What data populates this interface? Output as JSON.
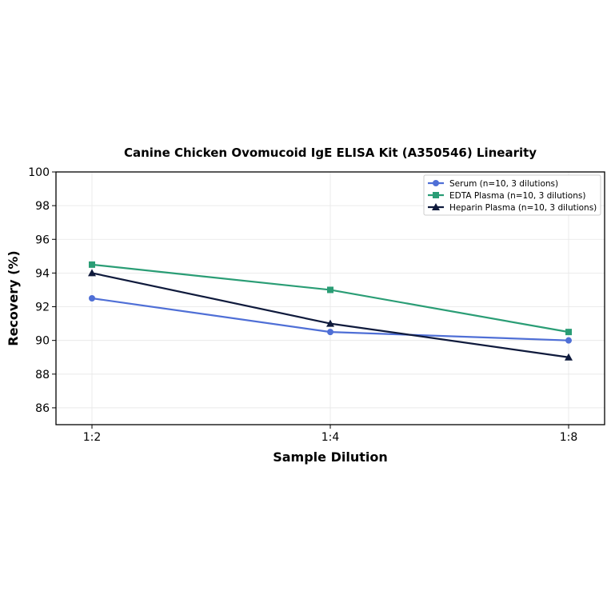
{
  "chart_data": {
    "type": "line",
    "title": "Canine Chicken Ovomucoid IgE ELISA Kit (A350546) Linearity",
    "xlabel": "Sample Dilution",
    "ylabel": "Recovery (%)",
    "categories": [
      "1:2",
      "1:4",
      "1:8"
    ],
    "ylim": [
      85,
      100
    ],
    "yticks": [
      86,
      88,
      90,
      92,
      94,
      96,
      98,
      100
    ],
    "grid": true,
    "legend_position": "top-right",
    "series": [
      {
        "name": "Serum (n=10, 3 dilutions)",
        "values": [
          92.5,
          90.5,
          90.0
        ],
        "color": "#4f6fd6",
        "marker": "circle"
      },
      {
        "name": "EDTA Plasma (n=10, 3 dilutions)",
        "values": [
          94.5,
          93.0,
          90.5
        ],
        "color": "#2a9d75",
        "marker": "square"
      },
      {
        "name": "Heparin Plasma (n=10, 3 dilutions)",
        "values": [
          94.0,
          91.0,
          89.0
        ],
        "color": "#0f1a3c",
        "marker": "triangle"
      }
    ]
  }
}
